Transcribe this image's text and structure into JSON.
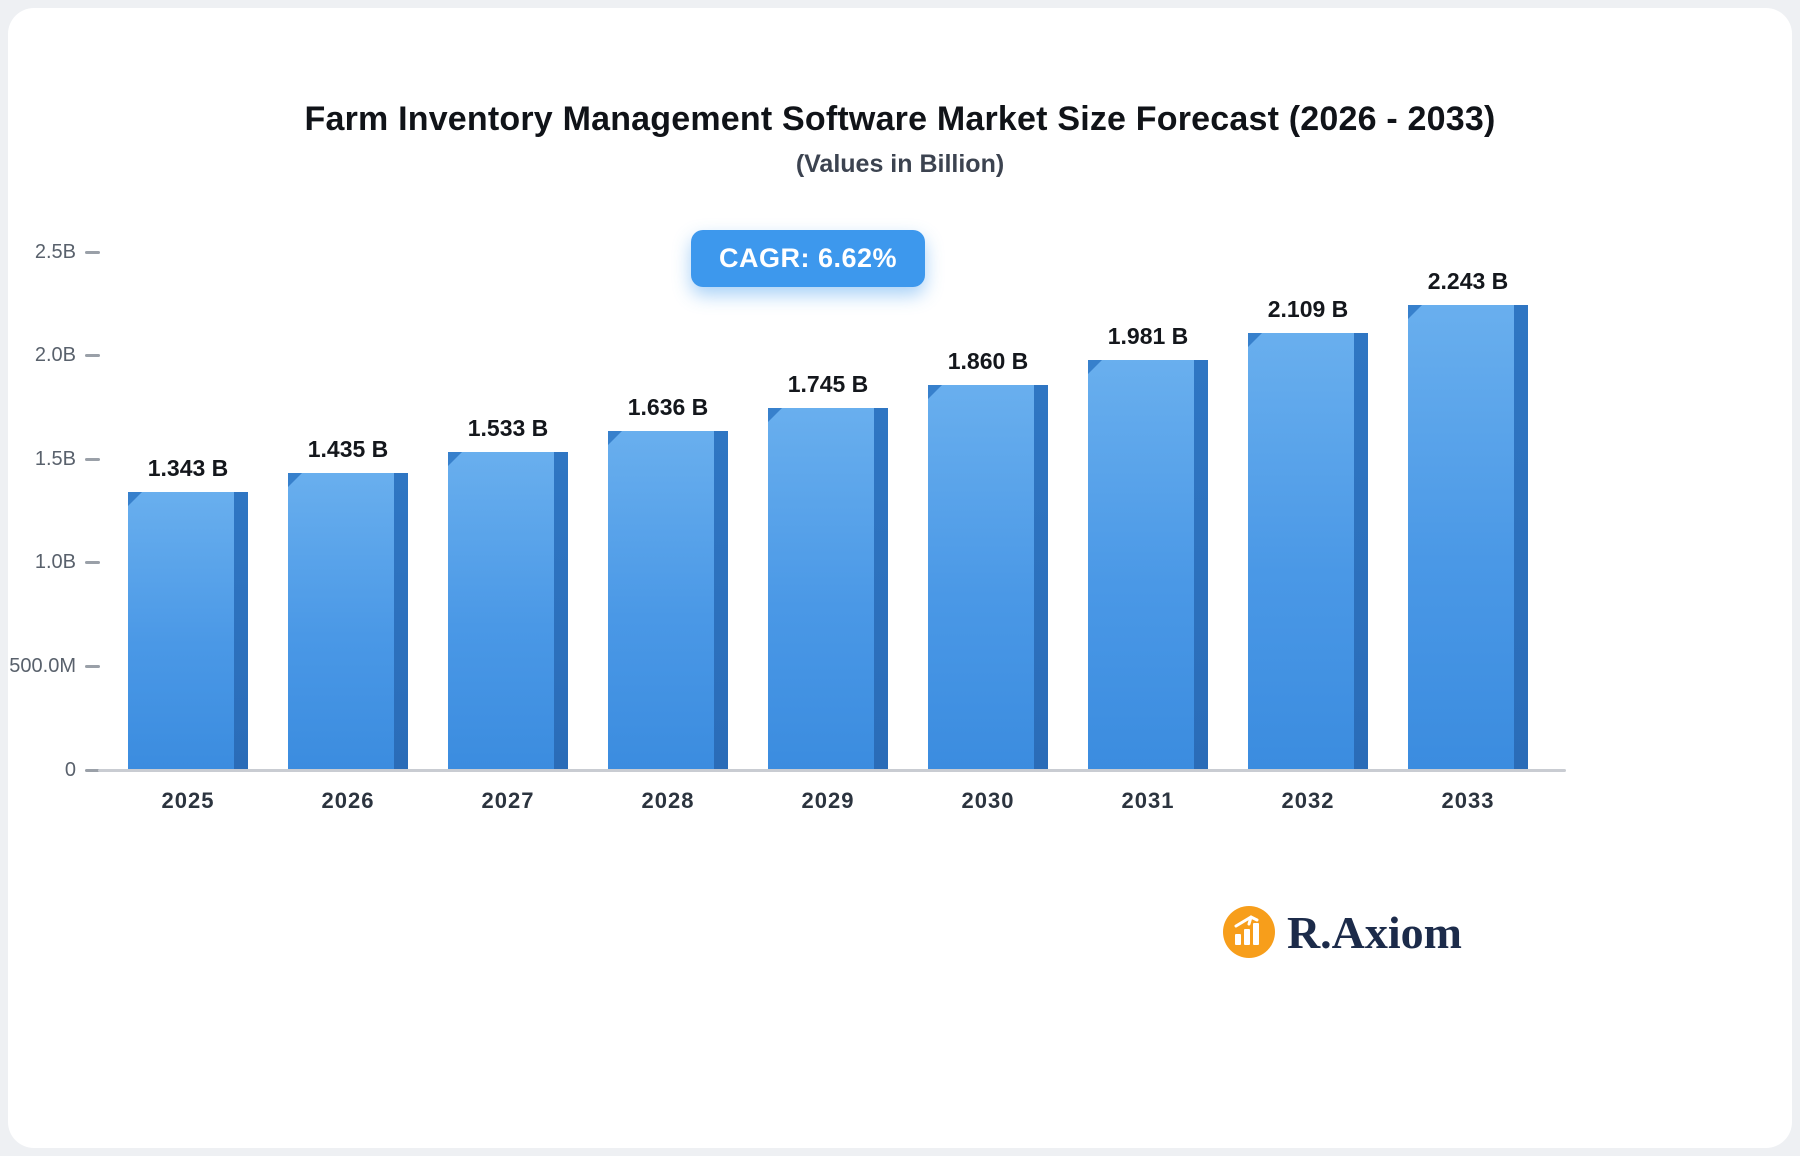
{
  "title": "Farm Inventory Management Software Market Size Forecast (2026 - 2033)",
  "subtitle": "(Values in Billion)",
  "cagr_label": "CAGR: 6.62%",
  "logo": {
    "text": "R.Axiom",
    "icon": "bar-chart-growth-icon",
    "icon_color": "#f79e1b"
  },
  "colors": {
    "bar_face_top": "#69afee",
    "bar_face_bottom": "#3b8cdf",
    "bar_side": "#2a6cb8",
    "badge": "#3d98ed",
    "axis_line": "#c9ccd2"
  },
  "chart_data": {
    "type": "bar",
    "title": "Farm Inventory Management Software Market Size Forecast (2026 - 2033)",
    "subtitle": "(Values in Billion)",
    "annotation": "CAGR: 6.62%",
    "categories": [
      "2025",
      "2026",
      "2027",
      "2028",
      "2029",
      "2030",
      "2031",
      "2032",
      "2033"
    ],
    "values": [
      1.343,
      1.435,
      1.533,
      1.636,
      1.745,
      1.86,
      1.981,
      2.109,
      2.243
    ],
    "value_labels": [
      "1.343 B",
      "1.435 B",
      "1.533 B",
      "1.636 B",
      "1.745 B",
      "1.860 B",
      "1.981 B",
      "2.109 B",
      "2.243 B"
    ],
    "xlabel": "",
    "ylabel": "",
    "ylim": [
      0,
      2.5
    ],
    "yticks": [
      {
        "value": 0,
        "label": "0"
      },
      {
        "value": 0.5,
        "label": "500.0M"
      },
      {
        "value": 1.0,
        "label": "1.0B"
      },
      {
        "value": 1.5,
        "label": "1.5B"
      },
      {
        "value": 2.0,
        "label": "2.0B"
      },
      {
        "value": 2.5,
        "label": "2.5B"
      }
    ],
    "grid": false,
    "legend": "none",
    "unit": "Billion USD"
  }
}
